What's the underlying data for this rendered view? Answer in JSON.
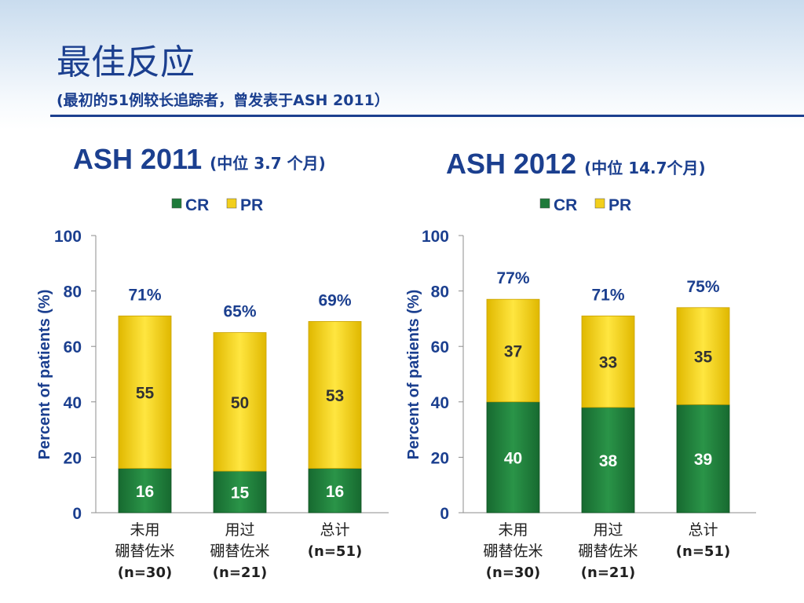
{
  "header": {
    "title": "最佳反应",
    "subtitle": "(最初的51例较长追踪者，曾发表于ASH 2011）"
  },
  "colors": {
    "cr": "#1e7a3a",
    "pr": "#f2cf1c",
    "text": "#1b3f8f",
    "label": "#1f1f1f"
  },
  "chart_data": [
    {
      "type": "bar",
      "stacked": true,
      "title": "ASH 2011",
      "subtitle": "(中位 3.7 个月)",
      "categories": [
        [
          "未用",
          "硼替佐米",
          "(n=30)"
        ],
        [
          "用过",
          "硼替佐米",
          "(n=21)"
        ],
        [
          "总计",
          "(n=51)"
        ]
      ],
      "series": [
        {
          "name": "CR",
          "values": [
            16,
            15,
            16
          ]
        },
        {
          "name": "PR",
          "values": [
            55,
            50,
            53
          ]
        }
      ],
      "totals": [
        "71%",
        "65%",
        "69%"
      ],
      "ylabel": "Percent of patients (%)",
      "ylim": [
        0,
        100
      ],
      "yticks": [
        0,
        20,
        40,
        60,
        80,
        100
      ],
      "legend": "top"
    },
    {
      "type": "bar",
      "stacked": true,
      "title": "ASH 2012",
      "subtitle": "(中位 14.7个月)",
      "categories": [
        [
          "未用",
          "硼替佐米",
          "(n=30)"
        ],
        [
          "用过",
          "硼替佐米",
          "(n=21)"
        ],
        [
          "总计",
          "(n=51)"
        ]
      ],
      "series": [
        {
          "name": "CR",
          "values": [
            40,
            38,
            39
          ]
        },
        {
          "name": "PR",
          "values": [
            37,
            33,
            35
          ]
        }
      ],
      "totals": [
        "77%",
        "71%",
        "75%"
      ],
      "ylabel": "Percent of patients (%)",
      "ylim": [
        0,
        100
      ],
      "yticks": [
        0,
        20,
        40,
        60,
        80,
        100
      ],
      "legend": "top"
    }
  ]
}
